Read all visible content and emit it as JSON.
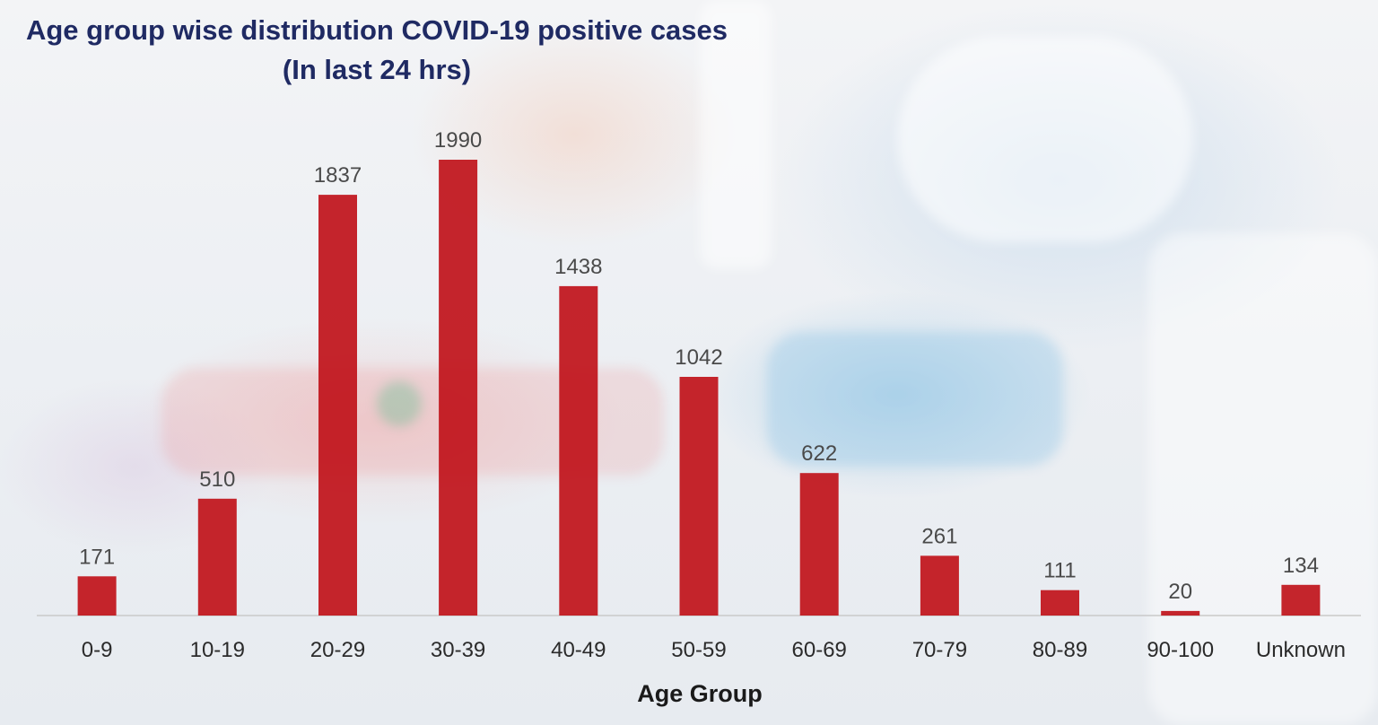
{
  "colors": {
    "bar": "#c0121a",
    "title": "#1f2a63",
    "axis": "#c9c9c9"
  },
  "chart_data": {
    "type": "bar",
    "title": "Age group wise distribution COVID-19 positive cases",
    "subtitle": "(In last 24 hrs)",
    "xlabel": "Age Group",
    "ylabel": "",
    "categories": [
      "0-9",
      "10-19",
      "20-29",
      "30-39",
      "40-49",
      "50-59",
      "60-69",
      "70-79",
      "80-89",
      "90-100",
      "Unknown"
    ],
    "values": [
      171,
      510,
      1837,
      1990,
      1438,
      1042,
      622,
      261,
      111,
      20,
      134
    ],
    "ylim": [
      0,
      2000
    ],
    "grid": false,
    "legend": "none"
  }
}
